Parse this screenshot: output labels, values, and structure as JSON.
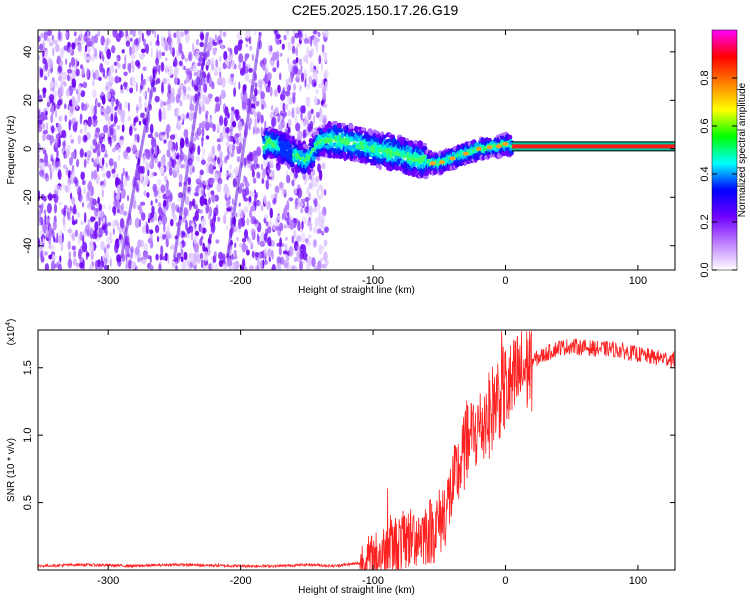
{
  "title": "C2E5.2025.150.17.26.G19",
  "chart_data": [
    {
      "type": "heatmap",
      "xlabel": "Height of straight line (km)",
      "ylabel": "Frequency (Hz)",
      "xlim": [
        -353,
        128
      ],
      "ylim": [
        -50,
        49
      ],
      "x_ticks": [
        "-300",
        "-200",
        "-100",
        "0",
        "100"
      ],
      "x_tick_values": [
        -300,
        -200,
        -100,
        0,
        100
      ],
      "y_ticks": [
        "40",
        "20",
        "0",
        "-20",
        "-40"
      ],
      "y_tick_values": [
        40,
        20,
        0,
        -20,
        -40
      ],
      "colorbar": {
        "label": "Normalized spectral amplitude",
        "range": [
          0,
          1
        ],
        "ticks": [
          "0.0",
          "0.2",
          "0.4",
          "0.6",
          "0.8"
        ],
        "tick_values": [
          0.0,
          0.2,
          0.4,
          0.6,
          0.8
        ],
        "colors": [
          "#ffffff",
          "#c080ff",
          "#7000ff",
          "#0000ff",
          "#00ffff",
          "#00ff00",
          "#ffff00",
          "#ff8000",
          "#ff0000",
          "#ff00ff"
        ]
      },
      "ridge": {
        "x": [
          -180,
          -170,
          -160,
          -150,
          -140,
          -130,
          -120,
          -110,
          -100,
          -90,
          -80,
          -70,
          -60,
          -55,
          -50,
          -45,
          -40,
          -35,
          -30,
          -25,
          -20,
          -15,
          -10,
          -5,
          0,
          5,
          128
        ],
        "y": [
          3,
          1,
          -2,
          -5,
          3,
          4,
          3,
          2,
          0,
          -1,
          -2,
          -4,
          -5,
          -6,
          -6,
          -5,
          -4,
          -3,
          -2,
          -1,
          0,
          0,
          1,
          1,
          2,
          1,
          1
        ]
      },
      "noise_region_x": [
        -353,
        -135
      ]
    },
    {
      "type": "line",
      "xlabel": "Height of straight line (km)",
      "ylabel": "SNR (10 * v/v)",
      "y_multiplier": "(x10",
      "y_multiplier_exp": "4",
      "xlim": [
        -353,
        128
      ],
      "ylim": [
        0,
        1.78
      ],
      "x_ticks": [
        "-300",
        "-200",
        "-100",
        "0",
        "100"
      ],
      "x_tick_values": [
        -300,
        -200,
        -100,
        0,
        100
      ],
      "y_ticks": [
        "0.5",
        "1.0",
        "1.5"
      ],
      "y_tick_values": [
        0.5,
        1.0,
        1.5
      ],
      "line_color": "#ff2020",
      "series": [
        {
          "x": [
            -353,
            -320,
            -280,
            -250,
            -200,
            -170,
            -150,
            -130,
            -110,
            -100,
            -90,
            -80,
            -70,
            -60,
            -55,
            -50,
            -45,
            -40,
            -35,
            -30,
            -25,
            -20,
            -15,
            -10,
            -5,
            0,
            5,
            10,
            20,
            30,
            40,
            50,
            60,
            70,
            80,
            90,
            100,
            110,
            120,
            128
          ],
          "y": [
            0.03,
            0.04,
            0.03,
            0.04,
            0.03,
            0.03,
            0.04,
            0.03,
            0.05,
            0.08,
            0.15,
            0.2,
            0.25,
            0.28,
            0.3,
            0.35,
            0.45,
            0.6,
            0.75,
            0.9,
            1.0,
            1.05,
            1.1,
            1.2,
            1.3,
            1.35,
            1.35,
            1.45,
            1.55,
            1.6,
            1.65,
            1.66,
            1.65,
            1.64,
            1.64,
            1.62,
            1.6,
            1.58,
            1.57,
            1.56
          ]
        }
      ]
    }
  ]
}
